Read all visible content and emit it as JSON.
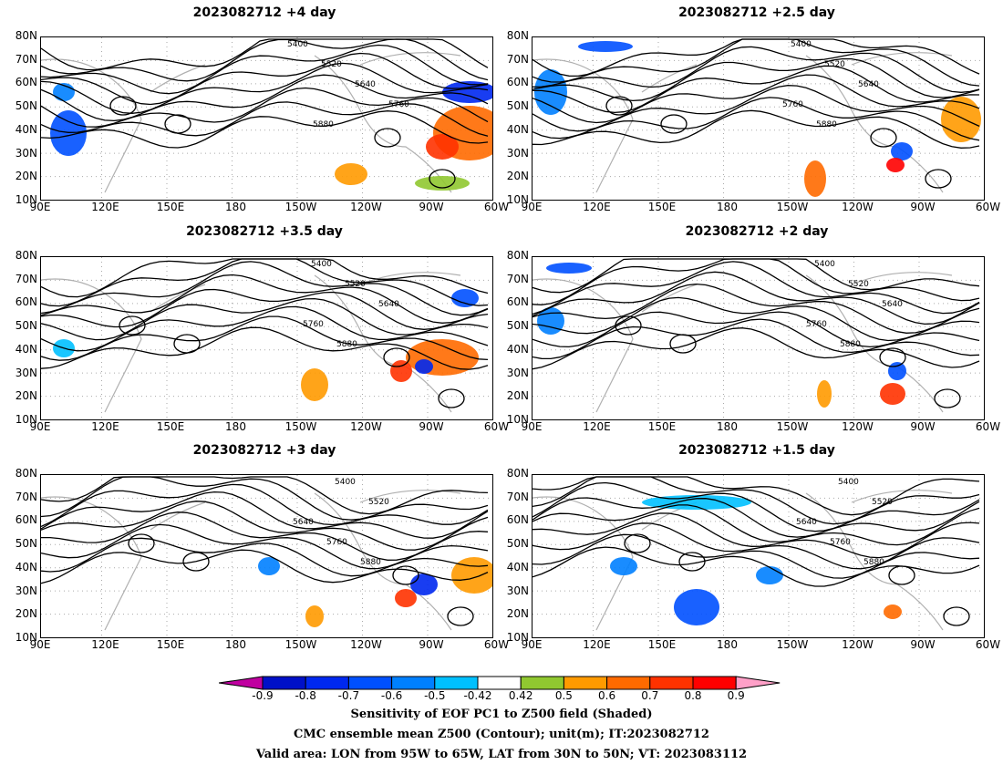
{
  "panels": [
    {
      "title": "2023082712  +4 day"
    },
    {
      "title": "2023082712  +2.5  day"
    },
    {
      "title": "2023082712  +3.5  day"
    },
    {
      "title": "2023082712  +2  day"
    },
    {
      "title": "2023082712  +3  day"
    },
    {
      "title": "2023082712  +1.5  day"
    }
  ],
  "lat_labels": [
    "80N",
    "70N",
    "60N",
    "50N",
    "40N",
    "30N",
    "20N",
    "10N"
  ],
  "lon_labels": [
    "90E",
    "120E",
    "150E",
    "180",
    "150W",
    "120W",
    "90W",
    "60W"
  ],
  "contour_labels": [
    "5400",
    "5520",
    "5640",
    "5760",
    "5880"
  ],
  "colorbar": {
    "labels": [
      "-0.9",
      "-0.8",
      "-0.7",
      "-0.6",
      "-0.5",
      "-0.42",
      "0.42",
      "0.5",
      "0.6",
      "0.7",
      "0.8",
      "0.9"
    ],
    "colors": [
      "#c000a0",
      "#0010c8",
      "#0028f0",
      "#0050ff",
      "#0080ff",
      "#00c0ff",
      "#ffffff",
      "#90c830",
      "#ff9a00",
      "#ff6a00",
      "#ff3200",
      "#ff0000",
      "#ffa0c8"
    ]
  },
  "caption": {
    "line1": "Sensitivity of EOF PC1 to Z500 field (Shaded)",
    "line2": "CMC ensemble mean Z500 (Contour); unit(m); IT:2023082712",
    "line3": "Valid area: LON from 95W to 65W, LAT from 30N to 50N; VT: 2023083112"
  }
}
